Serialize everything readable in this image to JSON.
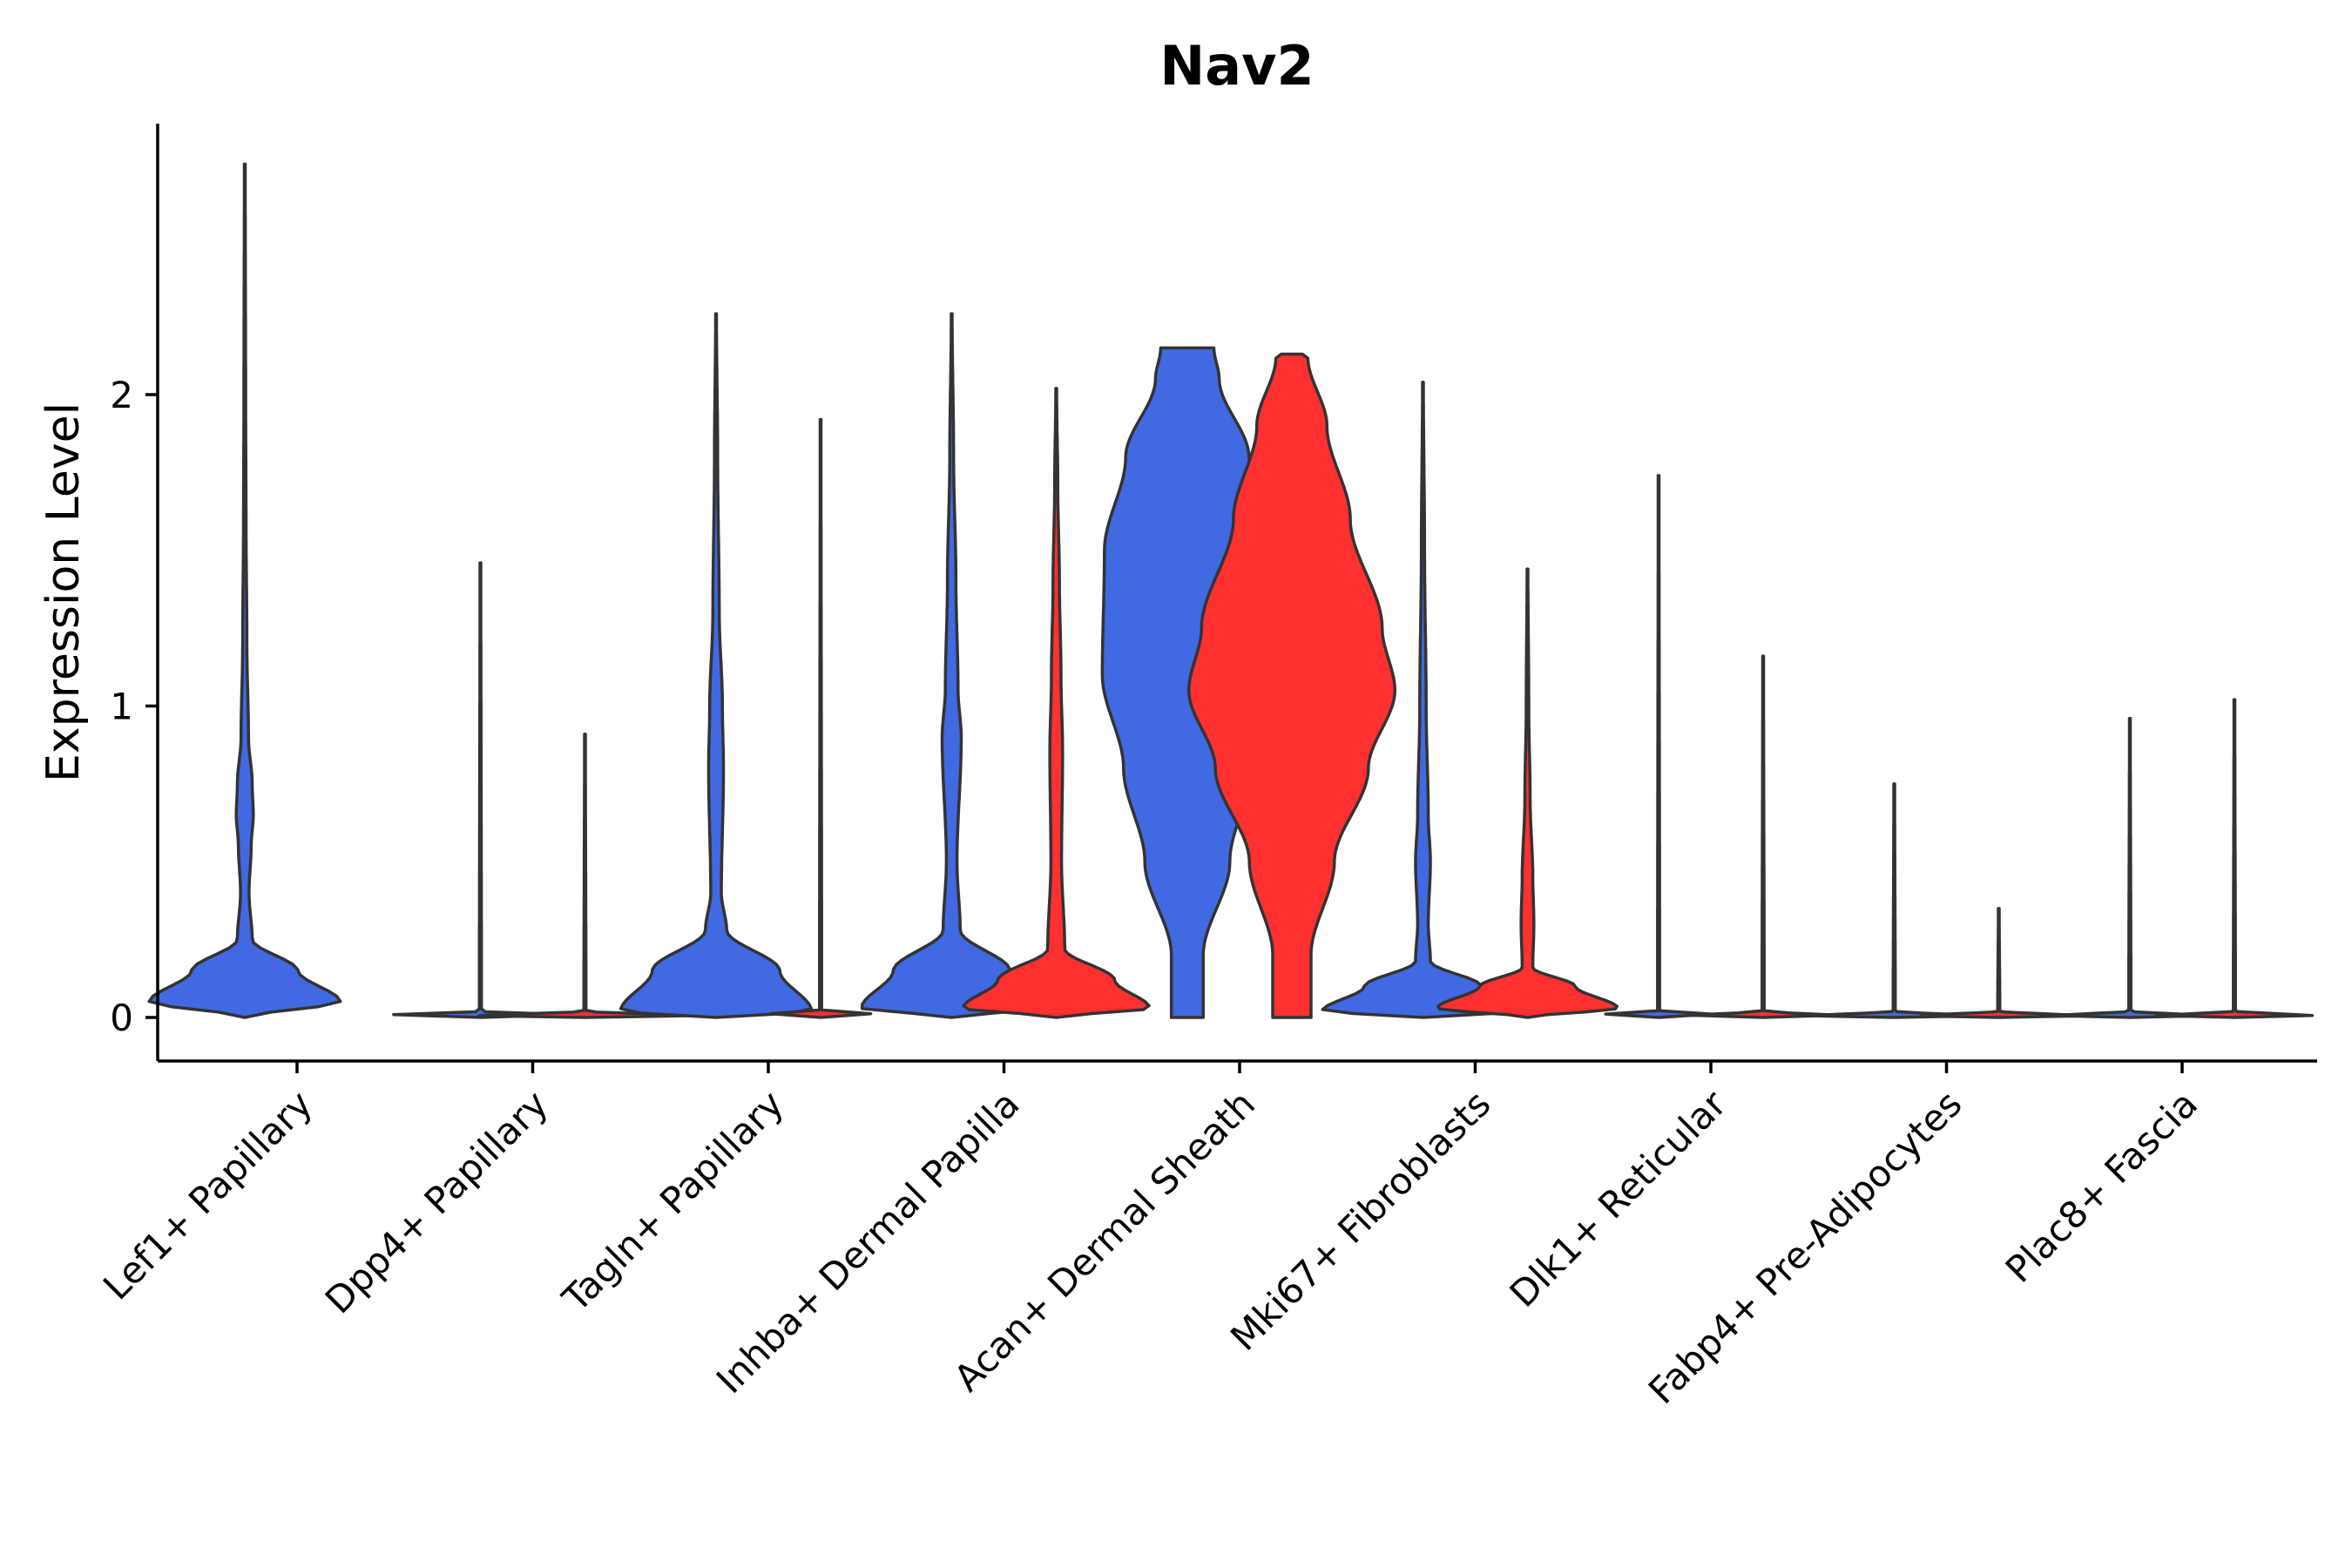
{
  "chart_data": {
    "type": "violin",
    "title": "Nav2",
    "xlabel": "",
    "ylabel": "Expression Level",
    "ylim": [
      -0.14,
      2.87
    ],
    "yticks": [
      0,
      1,
      2
    ],
    "categories": [
      "Lef1+ Papillary",
      "Dpp4+ Papillary",
      "Tagln+ Papillary",
      "Inhba+ Dermal Papilla",
      "Acan+ Dermal Sheath",
      "Mki67+ Fibroblasts",
      "Dlk1+ Reticular",
      "Fabp4+ Pre-Adipocytes",
      "Plac8+ Fascia"
    ],
    "split_colors": {
      "left": "#4169E1",
      "right": "#FF3030"
    },
    "violins": [
      {
        "category": "Lef1+ Papillary",
        "side": "left",
        "max": 2.74,
        "profile": [
          [
            0,
            0.0
          ],
          [
            0.05,
            0.9
          ],
          [
            0.15,
            0.5
          ],
          [
            0.25,
            0.07
          ],
          [
            0.4,
            0.04
          ],
          [
            0.55,
            0.06
          ],
          [
            0.65,
            0.08
          ],
          [
            0.75,
            0.07
          ],
          [
            0.9,
            0.035
          ],
          [
            1.2,
            0.02
          ],
          [
            1.6,
            0.012
          ],
          [
            2.0,
            0.008
          ],
          [
            2.74,
            0.004
          ]
        ]
      },
      {
        "category": "Dpp4+ Papillary",
        "side": "left",
        "max": 1.46,
        "profile": [
          [
            0,
            0.0
          ],
          [
            0.005,
            1.0
          ],
          [
            0.02,
            0.01
          ],
          [
            1.46,
            0.004
          ]
        ]
      },
      {
        "category": "Dpp4+ Papillary",
        "side": "right",
        "max": 0.91,
        "profile": [
          [
            0,
            0.0
          ],
          [
            0.005,
            1.0
          ],
          [
            0.02,
            0.01
          ],
          [
            0.91,
            0.004
          ]
        ]
      },
      {
        "category": "Tagln+ Papillary",
        "side": "left",
        "max": 2.26,
        "profile": [
          [
            0,
            0.0
          ],
          [
            0.02,
            0.9
          ],
          [
            0.15,
            0.6
          ],
          [
            0.28,
            0.1
          ],
          [
            0.4,
            0.05
          ],
          [
            0.8,
            0.07
          ],
          [
            1.0,
            0.06
          ],
          [
            1.3,
            0.03
          ],
          [
            1.8,
            0.015
          ],
          [
            2.26,
            0.004
          ]
        ]
      },
      {
        "category": "Tagln+ Papillary",
        "side": "right",
        "max": 1.92,
        "profile": [
          [
            0,
            0.0
          ],
          [
            0.005,
            0.85
          ],
          [
            0.02,
            0.01
          ],
          [
            1.92,
            0.004
          ]
        ]
      },
      {
        "category": "Inhba+ Dermal Papilla",
        "side": "left",
        "max": 2.26,
        "profile": [
          [
            0,
            0.0
          ],
          [
            0.03,
            0.85
          ],
          [
            0.15,
            0.55
          ],
          [
            0.28,
            0.08
          ],
          [
            0.5,
            0.05
          ],
          [
            0.9,
            0.09
          ],
          [
            1.05,
            0.06
          ],
          [
            1.4,
            0.04
          ],
          [
            1.8,
            0.018
          ],
          [
            2.26,
            0.004
          ]
        ]
      },
      {
        "category": "Inhba+ Dermal Papilla",
        "side": "right",
        "max": 2.02,
        "profile": [
          [
            0,
            0.0
          ],
          [
            0.03,
            0.88
          ],
          [
            0.12,
            0.55
          ],
          [
            0.22,
            0.08
          ],
          [
            0.5,
            0.05
          ],
          [
            0.85,
            0.06
          ],
          [
            1.1,
            0.045
          ],
          [
            1.4,
            0.03
          ],
          [
            1.7,
            0.015
          ],
          [
            2.02,
            0.004
          ]
        ]
      },
      {
        "category": "Acan+ Dermal Sheath",
        "side": "left",
        "max": 2.15,
        "profile": [
          [
            0,
            0.15
          ],
          [
            0.2,
            0.15
          ],
          [
            0.5,
            0.4
          ],
          [
            0.8,
            0.6
          ],
          [
            1.1,
            0.8
          ],
          [
            1.5,
            0.78
          ],
          [
            1.8,
            0.58
          ],
          [
            2.05,
            0.3
          ],
          [
            2.15,
            0.25
          ]
        ]
      },
      {
        "category": "Acan+ Dermal Sheath",
        "side": "right",
        "max": 2.13,
        "profile": [
          [
            0,
            0.18
          ],
          [
            0.2,
            0.18
          ],
          [
            0.5,
            0.4
          ],
          [
            0.8,
            0.72
          ],
          [
            1.05,
            0.97
          ],
          [
            1.25,
            0.85
          ],
          [
            1.6,
            0.55
          ],
          [
            1.9,
            0.33
          ],
          [
            2.12,
            0.15
          ],
          [
            2.13,
            0.1
          ]
        ]
      },
      {
        "category": "Mki67+ Fibroblasts",
        "side": "left",
        "max": 2.04,
        "profile": [
          [
            0,
            0.0
          ],
          [
            0.02,
            0.95
          ],
          [
            0.1,
            0.55
          ],
          [
            0.18,
            0.07
          ],
          [
            0.3,
            0.05
          ],
          [
            0.5,
            0.07
          ],
          [
            0.65,
            0.05
          ],
          [
            1.0,
            0.03
          ],
          [
            1.5,
            0.015
          ],
          [
            2.04,
            0.004
          ]
        ]
      },
      {
        "category": "Mki67+ Fibroblasts",
        "side": "right",
        "max": 1.44,
        "profile": [
          [
            0,
            0.0
          ],
          [
            0.03,
            0.85
          ],
          [
            0.1,
            0.45
          ],
          [
            0.16,
            0.05
          ],
          [
            0.3,
            0.06
          ],
          [
            0.45,
            0.05
          ],
          [
            0.7,
            0.025
          ],
          [
            1.0,
            0.012
          ],
          [
            1.44,
            0.004
          ]
        ]
      },
      {
        "category": "Dlk1+ Reticular",
        "side": "left",
        "max": 1.74,
        "profile": [
          [
            0,
            0.0
          ],
          [
            0.005,
            0.75
          ],
          [
            0.02,
            0.01
          ],
          [
            1.74,
            0.004
          ]
        ]
      },
      {
        "category": "Dlk1+ Reticular",
        "side": "right",
        "max": 1.16,
        "profile": [
          [
            0,
            0.0
          ],
          [
            0.005,
            0.75
          ],
          [
            0.02,
            0.01
          ],
          [
            1.16,
            0.004
          ]
        ]
      },
      {
        "category": "Fabp4+ Pre-Adipocytes",
        "side": "left",
        "max": 0.75,
        "profile": [
          [
            0,
            0.0
          ],
          [
            0.005,
            0.75
          ],
          [
            0.02,
            0.01
          ],
          [
            0.75,
            0.004
          ]
        ]
      },
      {
        "category": "Fabp4+ Pre-Adipocytes",
        "side": "right",
        "max": 0.35,
        "profile": [
          [
            0,
            0.0
          ],
          [
            0.005,
            0.75
          ],
          [
            0.02,
            0.01
          ],
          [
            0.35,
            0.004
          ]
        ]
      },
      {
        "category": "Plac8+ Fascia",
        "side": "left",
        "max": 0.96,
        "profile": [
          [
            0,
            0.0
          ],
          [
            0.005,
            0.75
          ],
          [
            0.02,
            0.01
          ],
          [
            0.96,
            0.004
          ]
        ]
      },
      {
        "category": "Plac8+ Fascia",
        "side": "right",
        "max": 1.02,
        "profile": [
          [
            0,
            0.0
          ],
          [
            0.005,
            0.75
          ],
          [
            0.02,
            0.01
          ],
          [
            1.02,
            0.004
          ]
        ]
      }
    ]
  }
}
